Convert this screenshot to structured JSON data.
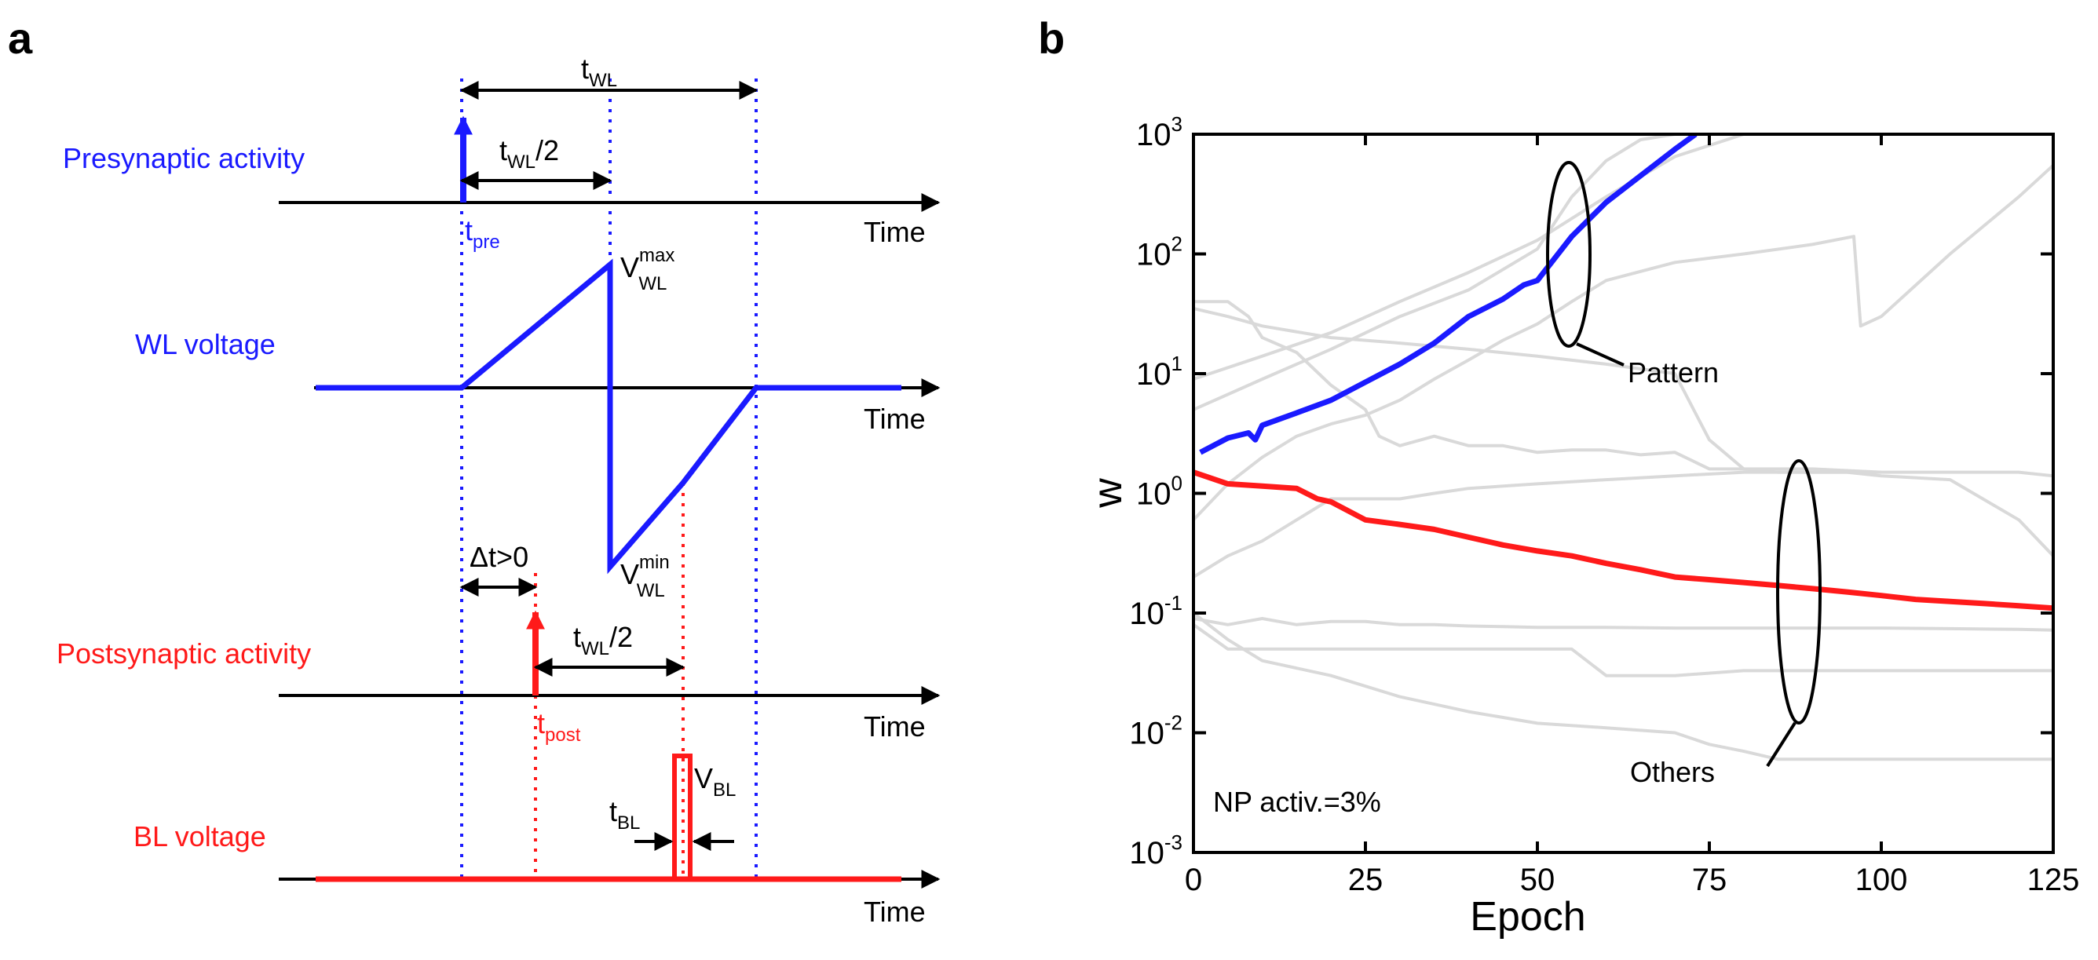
{
  "panel_a": {
    "panel_label": "a",
    "rows": {
      "presynaptic": "Presynaptic activity",
      "wl_voltage": "WL voltage",
      "postsynaptic": "Postsynaptic activity",
      "bl_voltage": "BL voltage"
    },
    "time_label": "Time",
    "t_wl": {
      "main": "t",
      "sub": "WL"
    },
    "t_wl_half": {
      "main": "t",
      "sub": "WL",
      "tail": "/2"
    },
    "t_pre": {
      "main": "t",
      "sub": "pre"
    },
    "t_post": {
      "main": "t",
      "sub": "post"
    },
    "v_wl_max": {
      "main": "V",
      "sub": "WL",
      "sup": "max"
    },
    "v_wl_min": {
      "main": "V",
      "sub": "WL",
      "sup": "min"
    },
    "delta_t": "Δt>0",
    "v_bl": {
      "main": "V",
      "sub": "BL"
    },
    "t_bl": {
      "main": "t",
      "sub": "BL"
    },
    "colors": {
      "pre": "#1a1aff",
      "post": "#ff1a1a",
      "axis": "#000000"
    }
  },
  "panel_b": {
    "panel_label": "b",
    "annotation": "NP activ.=3%",
    "pattern_label": "Pattern",
    "others_label": "Others",
    "chart_data": {
      "type": "line",
      "title": "",
      "xlabel": "Epoch",
      "ylabel": "w",
      "xlim": [
        0,
        125
      ],
      "ylim": [
        0.001,
        1000
      ],
      "yscale": "log",
      "xticks": [
        "0",
        "25",
        "50",
        "75",
        "100",
        "125"
      ],
      "yticks": [
        {
          "base": "10",
          "exp": "-3"
        },
        {
          "base": "10",
          "exp": "-2"
        },
        {
          "base": "10",
          "exp": "-1"
        },
        {
          "base": "10",
          "exp": "0"
        },
        {
          "base": "10",
          "exp": "1"
        },
        {
          "base": "10",
          "exp": "2"
        },
        {
          "base": "10",
          "exp": "3"
        }
      ],
      "series": [
        {
          "color": "#1a1aff",
          "x": [
            1,
            5,
            8,
            9,
            10,
            15,
            20,
            25,
            30,
            35,
            40,
            45,
            48,
            50,
            55,
            60,
            65,
            70,
            73
          ],
          "y": [
            2.2,
            2.9,
            3.2,
            2.8,
            3.7,
            4.7,
            6.0,
            8.5,
            12.0,
            18.0,
            30.0,
            42.0,
            55.0,
            60.0,
            140.0,
            270.0,
            450.0,
            750.0,
            1000.0
          ]
        },
        {
          "color": "#ff1a1a",
          "x": [
            0,
            5,
            10,
            15,
            18,
            20,
            25,
            30,
            35,
            40,
            45,
            50,
            55,
            60,
            65,
            70,
            75,
            80,
            85,
            90,
            95,
            100,
            105,
            110,
            115,
            120,
            125
          ],
          "y": [
            1.5,
            1.2,
            1.15,
            1.1,
            0.9,
            0.85,
            0.6,
            0.55,
            0.5,
            0.43,
            0.37,
            0.33,
            0.3,
            0.26,
            0.23,
            0.2,
            0.19,
            0.18,
            0.17,
            0.16,
            0.15,
            0.14,
            0.13,
            0.125,
            0.12,
            0.115,
            0.11
          ]
        },
        {
          "color": "#d9d9d9",
          "x": [
            0,
            10,
            20,
            30,
            40,
            50,
            60,
            70,
            80
          ],
          "y": [
            9,
            14,
            22,
            40,
            70,
            130,
            300,
            650,
            1000
          ]
        },
        {
          "color": "#d9d9d9",
          "x": [
            0,
            10,
            20,
            30,
            40,
            50,
            55,
            60,
            65,
            70
          ],
          "y": [
            5,
            9,
            16,
            30,
            50,
            110,
            300,
            600,
            900,
            1000
          ]
        },
        {
          "color": "#d9d9d9",
          "x": [
            0,
            5,
            10,
            15,
            20,
            25,
            30,
            35,
            40,
            45,
            50,
            55,
            60,
            70,
            80,
            90,
            96,
            97,
            100,
            110,
            120,
            125
          ],
          "y": [
            0.6,
            1.2,
            2.0,
            3.0,
            3.8,
            4.5,
            6,
            9,
            13,
            19,
            26,
            40,
            60,
            85,
            100,
            120,
            140,
            25,
            30,
            100,
            300,
            550
          ]
        },
        {
          "color": "#d9d9d9",
          "x": [
            0,
            5,
            8,
            10,
            15,
            20,
            25,
            27,
            30,
            35,
            40,
            45,
            50,
            55,
            60,
            65,
            70,
            75,
            80,
            85,
            90,
            95,
            100
          ],
          "y": [
            40,
            40,
            30,
            20,
            15,
            8,
            5,
            3,
            2.5,
            3,
            2.5,
            2.5,
            2.2,
            2.3,
            2.3,
            2.1,
            2.2,
            1.6,
            1.6,
            1.5,
            1.5,
            1.5,
            1.5
          ]
        },
        {
          "color": "#d9d9d9",
          "x": [
            0,
            5,
            10,
            20,
            30,
            40,
            50,
            60,
            70,
            75,
            80,
            90,
            100,
            110,
            120,
            125
          ],
          "y": [
            35,
            30,
            25,
            20,
            18,
            16,
            14,
            12,
            10,
            2.8,
            1.6,
            1.6,
            1.5,
            1.5,
            1.5,
            1.4
          ]
        },
        {
          "color": "#d9d9d9",
          "x": [
            0,
            5,
            10,
            15,
            20,
            25,
            30,
            35,
            40,
            50,
            60,
            70,
            80,
            90,
            95,
            100,
            110,
            120,
            125
          ],
          "y": [
            0.2,
            0.3,
            0.4,
            0.6,
            0.9,
            0.9,
            0.9,
            1.0,
            1.1,
            1.2,
            1.3,
            1.4,
            1.5,
            1.5,
            1.5,
            1.4,
            1.3,
            0.6,
            0.3
          ]
        },
        {
          "color": "#d9d9d9",
          "x": [
            0,
            5,
            10,
            15,
            20,
            25,
            30,
            35,
            40,
            45,
            50,
            55,
            60,
            70,
            80,
            90,
            100,
            110,
            120,
            125
          ],
          "y": [
            0.09,
            0.08,
            0.09,
            0.08,
            0.085,
            0.085,
            0.08,
            0.08,
            0.078,
            0.077,
            0.076,
            0.076,
            0.076,
            0.075,
            0.075,
            0.075,
            0.075,
            0.074,
            0.073,
            0.072
          ]
        },
        {
          "color": "#d9d9d9",
          "x": [
            0,
            5,
            10,
            20,
            30,
            40,
            55,
            60,
            70,
            80,
            90,
            100,
            110,
            120,
            125
          ],
          "y": [
            0.08,
            0.05,
            0.05,
            0.05,
            0.05,
            0.05,
            0.05,
            0.03,
            0.03,
            0.033,
            0.033,
            0.033,
            0.033,
            0.033,
            0.033
          ]
        },
        {
          "color": "#d9d9d9",
          "x": [
            0,
            5,
            10,
            20,
            30,
            40,
            50,
            60,
            70,
            75,
            80,
            85,
            90,
            100,
            110,
            120,
            125
          ],
          "y": [
            0.1,
            0.06,
            0.04,
            0.03,
            0.02,
            0.015,
            0.012,
            0.011,
            0.01,
            0.008,
            0.007,
            0.006,
            0.006,
            0.006,
            0.006,
            0.006,
            0.006
          ]
        }
      ]
    }
  }
}
